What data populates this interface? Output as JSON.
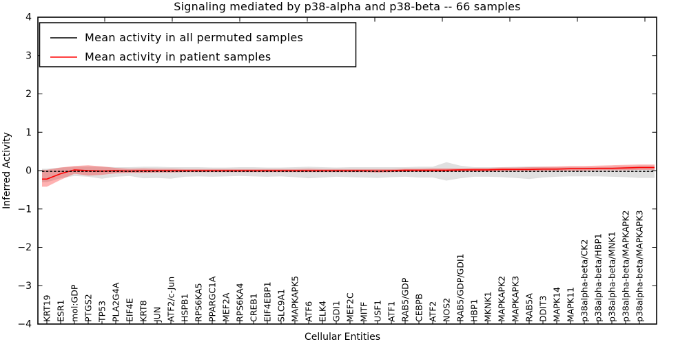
{
  "chart_data": {
    "type": "line",
    "title": "Signaling mediated by p38-alpha and p38-beta -- 66 samples",
    "xlabel": "Cellular Entities",
    "ylabel": "Inferred Activity",
    "ylim": [
      -4,
      4
    ],
    "ytick_labels": [
      "4",
      "3",
      "2",
      "1",
      "0",
      "−1",
      "−2",
      "−3",
      "−4"
    ],
    "ytick_values": [
      4,
      3,
      2,
      1,
      0,
      -1,
      -2,
      -3,
      -4
    ],
    "grid": false,
    "legend": {
      "position": "upper left",
      "entries": [
        {
          "label": "Mean activity in all permuted samples",
          "color": "#000000"
        },
        {
          "label": "Mean activity in patient samples",
          "color": "#ff0000"
        }
      ]
    },
    "categories": [
      "KRT19",
      "ESR1",
      "mol:GDP",
      "PTGS2",
      "TP53",
      "PLA2G4A",
      "EIF4E",
      "KRT8",
      "JUN",
      "ATF2/c-Jun",
      "HSPB1",
      "RPS6KA5",
      "PPARGC1A",
      "MEF2A",
      "RPS6KA4",
      "CREB1",
      "EIF4EBP1",
      "SLC9A1",
      "MAPKAPK5",
      "ATF6",
      "ELK4",
      "GDI1",
      "MEF2C",
      "MITF",
      "USF1",
      "ATF1",
      "RAB5/GDP",
      "CEBPB",
      "ATF2",
      "NOS2",
      "RAB5/GDP/GDI1",
      "HBP1",
      "MKNK1",
      "MAPKAPK2",
      "MAPKAPK3",
      "RAB5A",
      "DDIT3",
      "MAPK14",
      "MAPK11",
      "p38alpha-beta/CK2",
      "p38alpha-beta/HBP1",
      "p38alpha-beta/MNK1",
      "p38alpha-beta/MAPKAPK2",
      "p38alpha-beta/MAPKAPK3"
    ],
    "series": [
      {
        "name": "Mean activity in all permuted samples",
        "color": "#000000",
        "line_style": "dashed",
        "band_color": "rgba(0,0,0,0.12)",
        "values": [
          -0.02,
          -0.02,
          -0.02,
          -0.02,
          -0.02,
          -0.02,
          -0.02,
          -0.02,
          -0.02,
          -0.02,
          -0.02,
          -0.02,
          -0.02,
          -0.02,
          -0.02,
          -0.02,
          -0.02,
          -0.02,
          -0.02,
          -0.02,
          -0.02,
          -0.02,
          -0.02,
          -0.02,
          -0.02,
          -0.02,
          -0.02,
          -0.02,
          -0.02,
          -0.02,
          -0.02,
          -0.02,
          -0.02,
          -0.02,
          -0.02,
          -0.02,
          -0.02,
          -0.02,
          -0.02,
          -0.02,
          -0.02,
          -0.02,
          -0.02,
          -0.02
        ],
        "band_upper": [
          0.05,
          0.08,
          0.1,
          0.11,
          0.1,
          0.09,
          0.09,
          0.1,
          0.1,
          0.09,
          0.09,
          0.09,
          0.08,
          0.08,
          0.09,
          0.09,
          0.08,
          0.08,
          0.09,
          0.1,
          0.09,
          0.08,
          0.09,
          0.09,
          0.09,
          0.09,
          0.09,
          0.1,
          0.1,
          0.22,
          0.13,
          0.09,
          0.09,
          0.09,
          0.1,
          0.11,
          0.1,
          0.09,
          0.09,
          0.09,
          0.09,
          0.1,
          0.11,
          0.13
        ],
        "band_lower": [
          -0.3,
          -0.2,
          -0.14,
          -0.16,
          -0.21,
          -0.16,
          -0.14,
          -0.2,
          -0.19,
          -0.21,
          -0.16,
          -0.15,
          -0.16,
          -0.15,
          -0.14,
          -0.15,
          -0.16,
          -0.15,
          -0.17,
          -0.2,
          -0.18,
          -0.16,
          -0.17,
          -0.18,
          -0.19,
          -0.17,
          -0.16,
          -0.18,
          -0.18,
          -0.26,
          -0.2,
          -0.16,
          -0.16,
          -0.17,
          -0.19,
          -0.22,
          -0.18,
          -0.16,
          -0.15,
          -0.15,
          -0.15,
          -0.16,
          -0.17,
          -0.19
        ]
      },
      {
        "name": "Mean activity in patient samples",
        "color": "#ff0000",
        "line_style": "solid",
        "band_color": "rgba(255,0,0,0.30)",
        "values": [
          -0.22,
          -0.08,
          0.02,
          0.0,
          -0.01,
          0.0,
          -0.01,
          0.0,
          0.0,
          0.0,
          0.0,
          0.0,
          0.0,
          0.0,
          0.0,
          0.0,
          0.0,
          0.0,
          0.0,
          0.0,
          0.0,
          0.0,
          0.0,
          0.0,
          -0.01,
          0.0,
          0.01,
          0.01,
          0.01,
          0.01,
          0.02,
          0.02,
          0.02,
          0.03,
          0.03,
          0.03,
          0.04,
          0.04,
          0.05,
          0.05,
          0.06,
          0.06,
          0.07,
          0.08
        ],
        "band_upper": [
          0.02,
          0.08,
          0.12,
          0.14,
          0.11,
          0.07,
          0.05,
          0.06,
          0.05,
          0.05,
          0.04,
          0.04,
          0.04,
          0.04,
          0.04,
          0.04,
          0.04,
          0.04,
          0.04,
          0.05,
          0.04,
          0.04,
          0.04,
          0.04,
          0.04,
          0.04,
          0.05,
          0.05,
          0.06,
          0.06,
          0.06,
          0.07,
          0.07,
          0.08,
          0.08,
          0.09,
          0.1,
          0.11,
          0.12,
          0.12,
          0.13,
          0.14,
          0.15,
          0.16
        ],
        "band_lower": [
          -0.42,
          -0.24,
          -0.08,
          -0.13,
          -0.11,
          -0.07,
          -0.06,
          -0.06,
          -0.05,
          -0.05,
          -0.04,
          -0.04,
          -0.04,
          -0.04,
          -0.04,
          -0.04,
          -0.04,
          -0.04,
          -0.04,
          -0.04,
          -0.04,
          -0.04,
          -0.04,
          -0.04,
          -0.05,
          -0.04,
          -0.03,
          -0.03,
          -0.03,
          -0.03,
          -0.02,
          -0.02,
          -0.02,
          -0.02,
          -0.01,
          -0.01,
          -0.01,
          0.0,
          0.0,
          0.0,
          0.01,
          0.01,
          0.01,
          0.02
        ]
      }
    ]
  }
}
